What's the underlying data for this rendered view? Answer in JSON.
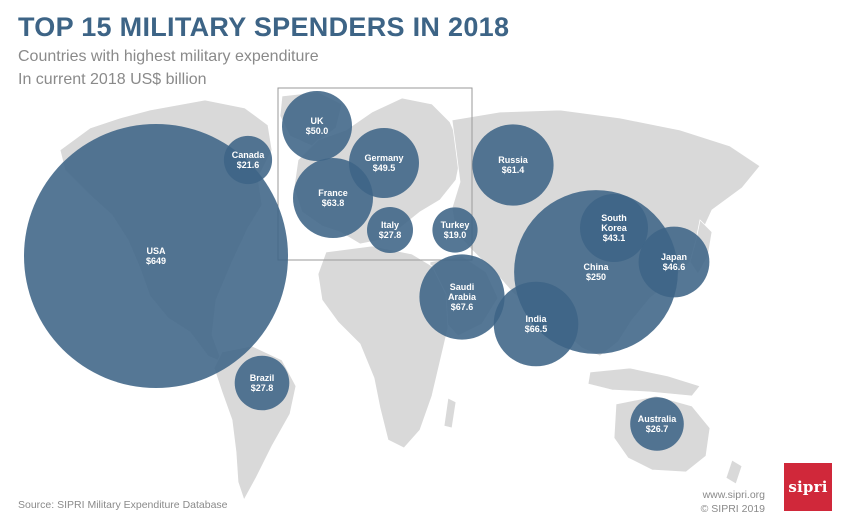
{
  "chart_data": {
    "type": "bubble-map",
    "title": "TOP 15 MILITARY SPENDERS IN 2018",
    "subtitle": "Countries with highest military expenditure",
    "unit_note": "In current 2018 US$ billion",
    "points": [
      {
        "country": "USA",
        "value_label": "$649",
        "value": 649
      },
      {
        "country": "China",
        "value_label": "$250",
        "value": 250
      },
      {
        "country": "Saudi Arabia",
        "value_label": "$67.6",
        "value": 67.6
      },
      {
        "country": "India",
        "value_label": "$66.5",
        "value": 66.5
      },
      {
        "country": "France",
        "value_label": "$63.8",
        "value": 63.8
      },
      {
        "country": "Russia",
        "value_label": "$61.4",
        "value": 61.4
      },
      {
        "country": "UK",
        "value_label": "$50.0",
        "value": 50.0
      },
      {
        "country": "Germany",
        "value_label": "$49.5",
        "value": 49.5
      },
      {
        "country": "Japan",
        "value_label": "$46.6",
        "value": 46.6
      },
      {
        "country": "South Korea",
        "value_label": "$43.1",
        "value": 43.1
      },
      {
        "country": "Italy",
        "value_label": "$27.8",
        "value": 27.8
      },
      {
        "country": "Brazil",
        "value_label": "$27.8",
        "value": 27.8
      },
      {
        "country": "Australia",
        "value_label": "$26.7",
        "value": 26.7
      },
      {
        "country": "Canada",
        "value_label": "$21.6",
        "value": 21.6
      },
      {
        "country": "Turkey",
        "value_label": "$19.0",
        "value": 19.0
      }
    ]
  },
  "footer": {
    "source": "Source: SIPRI Military Expenditure Database",
    "website": "www.sipri.org",
    "copyright": "© SIPRI 2019",
    "logo_text": "sipri"
  },
  "colors": {
    "bubble": "#3d6486",
    "land": "#d9d9d9",
    "title": "#3d6486",
    "logo_bg": "#d0283a"
  }
}
